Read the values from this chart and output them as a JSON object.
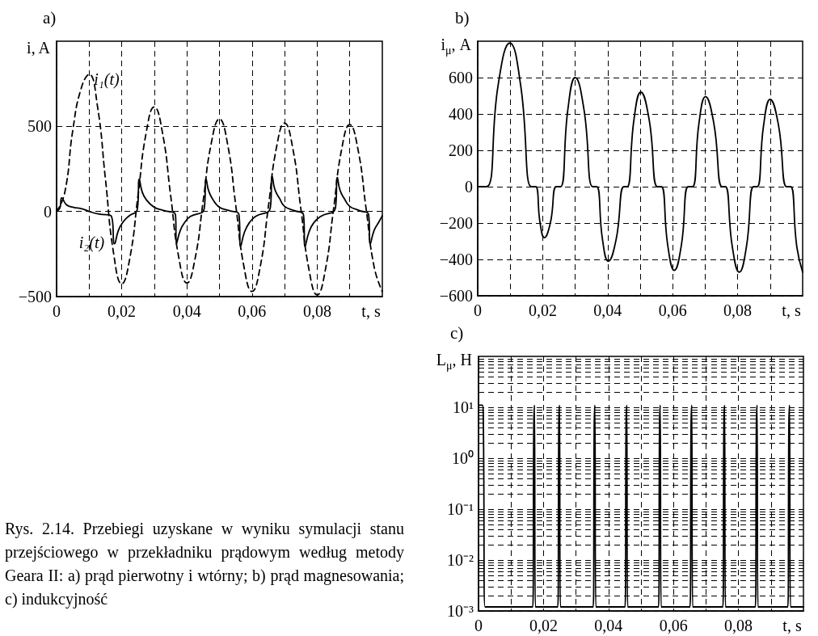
{
  "chart_data": [
    {
      "type": "line",
      "title": "a)",
      "xlabel": "t, s",
      "ylabel": "i, A",
      "xlim": [
        0,
        0.1
      ],
      "xticks": [
        {
          "value": 0,
          "label": "0"
        },
        {
          "value": 0.01,
          "label": null
        },
        {
          "value": 0.02,
          "label": "0,02"
        },
        {
          "value": 0.03,
          "label": null
        },
        {
          "value": 0.04,
          "label": "0,04"
        },
        {
          "value": 0.05,
          "label": null
        },
        {
          "value": 0.06,
          "label": "0,06"
        },
        {
          "value": 0.07,
          "label": null
        },
        {
          "value": 0.08,
          "label": "0,08"
        },
        {
          "value": 0.09,
          "label": null
        }
      ],
      "ylim": [
        -500,
        1000
      ],
      "yticks": [
        {
          "value": -500,
          "label": "−500"
        },
        0,
        500
      ],
      "grid": true,
      "marker": "none",
      "series": [
        {
          "name": "i₁(t)",
          "color": "#000000",
          "line_style": "dashed",
          "x": [
            0,
            0.0025,
            0.005,
            0.0075,
            0.01,
            0.0125,
            0.015,
            0.0175,
            0.02,
            0.0225,
            0.025,
            0.0275,
            0.03,
            0.0325,
            0.035,
            0.0375,
            0.04,
            0.0425,
            0.045,
            0.0475,
            0.05,
            0.0525,
            0.055,
            0.0575,
            0.06,
            0.0625,
            0.065,
            0.0675,
            0.07,
            0.0725,
            0.075,
            0.0775,
            0.08,
            0.0825,
            0.085,
            0.0875,
            0.09,
            0.0925,
            0.095,
            0.0975,
            0.1
          ],
          "values": [
            0,
            110,
            480,
            720,
            805,
            625,
            190,
            -245,
            -425,
            -273,
            95,
            462,
            614,
            463,
            97,
            -269,
            -420,
            -279,
            62,
            402,
            543,
            395,
            37,
            -322,
            -470,
            -326,
            25,
            375,
            519,
            372,
            15,
            -343,
            -490,
            -344,
            10,
            364,
            510,
            367,
            20,
            -327,
            -470
          ]
        },
        {
          "name": "i₂(t)",
          "color": "#000000",
          "line_style": "solid",
          "x": [
            0,
            0.001,
            0.0016,
            0.003,
            0.005,
            0.008,
            0.01,
            0.013,
            0.0167,
            0.0178,
            0.019,
            0.0205,
            0.022,
            0.0248,
            0.0254,
            0.0262,
            0.0275,
            0.03,
            0.033,
            0.0365,
            0.0368,
            0.038,
            0.0395,
            0.041,
            0.0453,
            0.0459,
            0.0467,
            0.048,
            0.05,
            0.053,
            0.056,
            0.0565,
            0.0577,
            0.0592,
            0.061,
            0.0656,
            0.0662,
            0.067,
            0.0685,
            0.07,
            0.073,
            0.0758,
            0.0763,
            0.0775,
            0.079,
            0.081,
            0.0856,
            0.0862,
            0.087,
            0.0885,
            0.09,
            0.093,
            0.0958,
            0.0963,
            0.0975,
            0.099,
            0.1
          ],
          "values": [
            0,
            20,
            80,
            40,
            25,
            15,
            0,
            -15,
            -25,
            -190,
            -110,
            -60,
            -30,
            15,
            190,
            120,
            70,
            25,
            5,
            -20,
            -190,
            -110,
            -60,
            -30,
            15,
            190,
            120,
            70,
            25,
            5,
            -20,
            -205,
            -120,
            -65,
            -30,
            20,
            205,
            130,
            75,
            30,
            5,
            -20,
            -205,
            -120,
            -65,
            -30,
            20,
            200,
            125,
            70,
            30,
            5,
            -20,
            -190,
            -110,
            -60,
            -25
          ]
        }
      ],
      "annotations": [
        "Rys. 2.14. Przebiegi uzyskane w wyniku symulacji stanu przejściowego w przekładniku prądowym według metody Geara II: a) prąd pierwotny i wtórny; b) prąd magnesowania; c) indukcyjność"
      ]
    },
    {
      "type": "line",
      "title": "b)",
      "xlabel": "t, s",
      "ylabel": "i$_{μ}$, A",
      "xlim": [
        0,
        0.1
      ],
      "xticks": [
        {
          "value": 0,
          "label": "0"
        },
        {
          "value": 0.01,
          "label": null
        },
        {
          "value": 0.02,
          "label": "0,02"
        },
        {
          "value": 0.03,
          "label": null
        },
        {
          "value": 0.04,
          "label": "0,04"
        },
        {
          "value": 0.05,
          "label": null
        },
        {
          "value": 0.06,
          "label": "0,06"
        },
        {
          "value": 0.07,
          "label": null
        },
        {
          "value": 0.08,
          "label": "0,08"
        },
        {
          "value": 0.09,
          "label": null
        }
      ],
      "ylim": [
        -600,
        800
      ],
      "yticks": [
        {
          "value": -600,
          "label": "−600"
        },
        {
          "value": -400,
          "label": "−400"
        },
        {
          "value": -200,
          "label": "−200"
        },
        0,
        200,
        400,
        600
      ],
      "grid": true,
      "marker": "none",
      "series": [
        {
          "color": "#000000",
          "line_style": "solid",
          "x": [
            0,
            0.0027,
            0.0063,
            0.0099,
            0.0132,
            0.0165,
            0.0178,
            0.0192,
            0.0205,
            0.02235,
            0.0242,
            0.0255,
            0.02775,
            0.03,
            0.0327,
            0.0354,
            0.0366,
            0.0384,
            0.0402,
            0.0426,
            0.045,
            0.046,
            0.0481,
            0.0502,
            0.05275,
            0.0553,
            0.0565,
            0.0585,
            0.0605,
            0.06265,
            0.0648,
            0.0661,
            0.0681,
            0.0701,
            0.07265,
            0.0752,
            0.0762,
            0.07835,
            0.0805,
            0.0827,
            0.0849,
            0.086,
            0.088,
            0.09,
            0.09255,
            0.0951,
            0.0963,
            0.0982,
            0.1
          ],
          "values": [
            0,
            0,
            560,
            790,
            560,
            0,
            0,
            -200,
            -280,
            -200,
            0,
            0,
            425,
            600,
            425,
            0,
            0,
            -290,
            -410,
            -290,
            0,
            0,
            370,
            520,
            370,
            0,
            0,
            -325,
            -460,
            -325,
            0,
            0,
            350,
            495,
            350,
            0,
            0,
            -330,
            -470,
            -330,
            0,
            0,
            340,
            480,
            340,
            0,
            0,
            -330,
            -470
          ]
        }
      ]
    },
    {
      "type": "line",
      "title": "c)",
      "xlabel": "t, s",
      "ylabel": "L$_{μ}$, H",
      "log": "y",
      "xlim": [
        0,
        0.1
      ],
      "xticks": [
        {
          "value": 0,
          "label": "0"
        },
        {
          "value": 0.01,
          "label": null
        },
        {
          "value": 0.02,
          "label": "0,02"
        },
        {
          "value": 0.03,
          "label": null
        },
        {
          "value": 0.04,
          "label": "0,04"
        },
        {
          "value": 0.05,
          "label": null
        },
        {
          "value": 0.06,
          "label": "0,06"
        },
        {
          "value": 0.07,
          "label": null
        },
        {
          "value": 0.08,
          "label": "0,08"
        },
        {
          "value": 0.09,
          "label": null
        }
      ],
      "ylim": [
        0.001,
        100
      ],
      "yticks": [
        {
          "value": 0.001,
          "label": "10⁻³"
        },
        {
          "value": 0.002,
          "label": null
        },
        {
          "value": 0.003,
          "label": null
        },
        {
          "value": 0.004,
          "label": null
        },
        {
          "value": 0.005,
          "label": null
        },
        {
          "value": 0.006,
          "label": null
        },
        {
          "value": 0.007,
          "label": null
        },
        {
          "value": 0.008,
          "label": null
        },
        {
          "value": 0.009,
          "label": null
        },
        {
          "value": 0.01,
          "label": "10⁻²"
        },
        {
          "value": 0.02,
          "label": null
        },
        {
          "value": 0.03,
          "label": null
        },
        {
          "value": 0.04,
          "label": null
        },
        {
          "value": 0.05,
          "label": null
        },
        {
          "value": 0.06,
          "label": null
        },
        {
          "value": 0.07,
          "label": null
        },
        {
          "value": 0.08,
          "label": null
        },
        {
          "value": 0.09,
          "label": null
        },
        {
          "value": 0.1,
          "label": "10⁻¹"
        },
        {
          "value": 0.2,
          "label": null
        },
        {
          "value": 0.3,
          "label": null
        },
        {
          "value": 0.4,
          "label": null
        },
        {
          "value": 0.5,
          "label": null
        },
        {
          "value": 0.6,
          "label": null
        },
        {
          "value": 0.7,
          "label": null
        },
        {
          "value": 0.8,
          "label": null
        },
        {
          "value": 0.9,
          "label": null
        },
        {
          "value": 1,
          "label": "10⁰"
        },
        {
          "value": 2,
          "label": null
        },
        {
          "value": 3,
          "label": null
        },
        {
          "value": 4,
          "label": null
        },
        {
          "value": 5,
          "label": null
        },
        {
          "value": 6,
          "label": null
        },
        {
          "value": 7,
          "label": null
        },
        {
          "value": 8,
          "label": null
        },
        {
          "value": 9,
          "label": null
        },
        {
          "value": 10,
          "label": "10¹"
        },
        {
          "value": 20,
          "label": null
        },
        {
          "value": 30,
          "label": null
        },
        {
          "value": 40,
          "label": null
        },
        {
          "value": 50,
          "label": null
        },
        {
          "value": 60,
          "label": null
        },
        {
          "value": 70,
          "label": null
        },
        {
          "value": 80,
          "label": null
        },
        {
          "value": 90,
          "label": null
        }
      ],
      "grid": true,
      "marker": "none",
      "series": [
        {
          "color": "#000000",
          "line_style": "solid",
          "x": [
            0,
            0.0012,
            0.0015,
            0.002,
            0.0167,
            0.017,
            0.0172,
            0.0175,
            0.0244,
            0.0247,
            0.0249,
            0.0252,
            0.0353,
            0.0356,
            0.0358,
            0.0361,
            0.0451,
            0.0454,
            0.0456,
            0.0459,
            0.0554,
            0.0557,
            0.0559,
            0.0562,
            0.0651,
            0.0654,
            0.0656,
            0.0659,
            0.0752,
            0.0755,
            0.0757,
            0.076,
            0.0852,
            0.0855,
            0.0857,
            0.086,
            0.0952,
            0.0955,
            0.0957,
            0.096,
            0.1
          ],
          "values": [
            11,
            11,
            4,
            0.0012,
            0.0012,
            4,
            11,
            0.0012,
            0.0012,
            4,
            11,
            0.0012,
            0.0012,
            4,
            11,
            0.0012,
            0.0012,
            4,
            11,
            0.0012,
            0.0012,
            4,
            11,
            0.0012,
            0.0012,
            4,
            11,
            0.0012,
            0.0012,
            4,
            11,
            0.0012,
            0.0012,
            4,
            11,
            0.0012,
            0.0012,
            4,
            11,
            0.0012,
            0.0012
          ]
        }
      ]
    }
  ]
}
